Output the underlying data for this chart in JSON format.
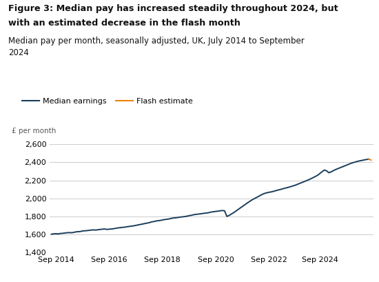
{
  "title_line1": "Figure 3: Median pay has increased steadily throughout 2024, but",
  "title_line2": "with an estimated decrease in the flash month",
  "subtitle": "Median pay per month, seasonally adjusted, UK, July 2014 to September\n2024",
  "ylabel": "£ per month",
  "ylim": [
    1400,
    2700
  ],
  "yticks": [
    1400,
    1600,
    1800,
    2000,
    2200,
    2400,
    2600
  ],
  "line_color": "#1a3d5c",
  "flash_color": "#e8820c",
  "legend_labels": [
    "Median earnings",
    "Flash estimate"
  ],
  "background_color": "#ffffff",
  "grid_color": "#cccccc",
  "median_data": [
    1602,
    1606,
    1608,
    1605,
    1610,
    1612,
    1615,
    1618,
    1620,
    1618,
    1622,
    1628,
    1630,
    1632,
    1638,
    1640,
    1642,
    1645,
    1648,
    1650,
    1648,
    1652,
    1655,
    1658,
    1660,
    1655,
    1658,
    1660,
    1663,
    1668,
    1672,
    1675,
    1678,
    1680,
    1685,
    1688,
    1692,
    1695,
    1700,
    1705,
    1710,
    1715,
    1720,
    1725,
    1730,
    1738,
    1742,
    1748,
    1752,
    1755,
    1760,
    1765,
    1768,
    1772,
    1778,
    1782,
    1785,
    1788,
    1792,
    1795,
    1798,
    1802,
    1808,
    1812,
    1818,
    1822,
    1825,
    1828,
    1832,
    1835,
    1838,
    1842,
    1848,
    1852,
    1855,
    1858,
    1862,
    1865,
    1862,
    1800,
    1810,
    1825,
    1840,
    1858,
    1875,
    1892,
    1910,
    1928,
    1945,
    1962,
    1978,
    1992,
    2005,
    2018,
    2032,
    2045,
    2055,
    2062,
    2068,
    2072,
    2078,
    2085,
    2092,
    2098,
    2105,
    2112,
    2118,
    2125,
    2132,
    2140,
    2148,
    2158,
    2168,
    2178,
    2188,
    2198,
    2208,
    2220,
    2232,
    2245,
    2258,
    2278,
    2298,
    2315,
    2305,
    2285,
    2295,
    2308,
    2320,
    2330,
    2340,
    2350,
    2360,
    2370,
    2380,
    2390,
    2398,
    2405,
    2412,
    2418,
    2422,
    2428,
    2432,
    2436
  ],
  "flash_value": 2425,
  "x_tick_positions": [
    2,
    26,
    50,
    74,
    98,
    121
  ],
  "x_tick_labels": [
    "Sep 2014",
    "Sep 2016",
    "Sep 2018",
    "Sep 2020",
    "Sep 2022",
    "Sep 2024"
  ]
}
